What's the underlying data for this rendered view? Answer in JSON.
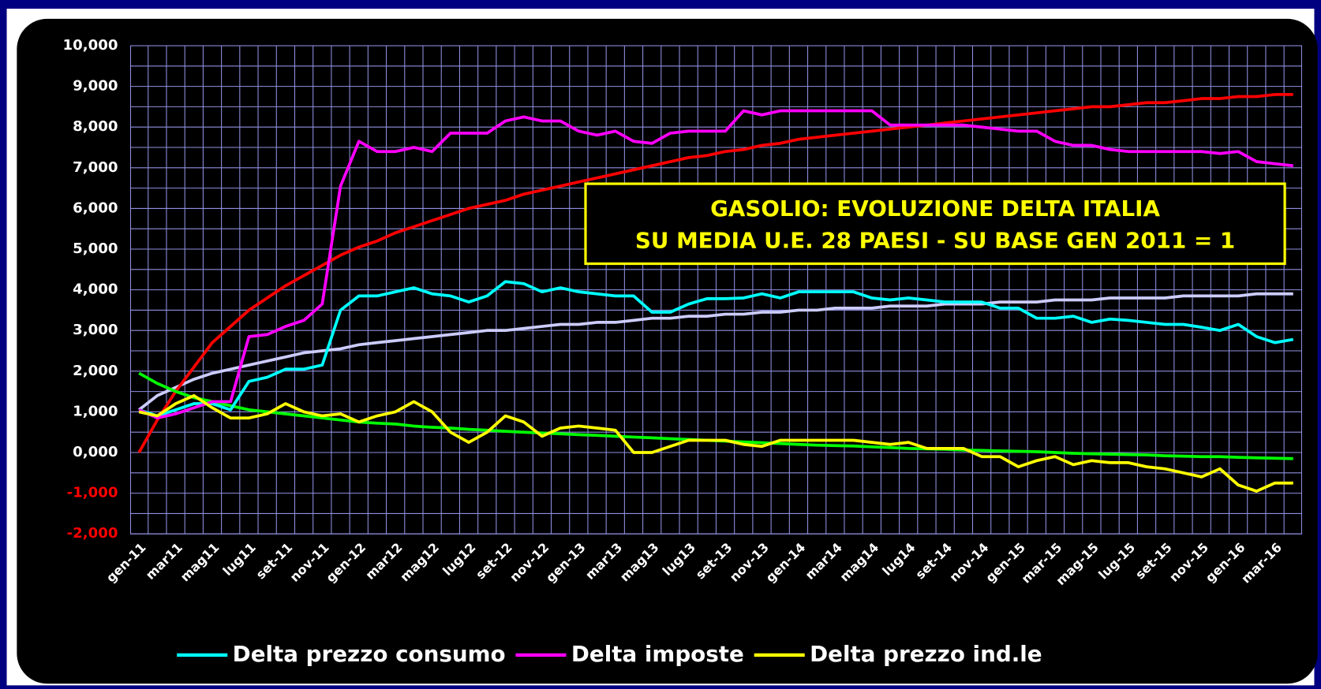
{
  "chart_data": {
    "type": "line",
    "title": "GASOLIO: EVOLUZIONE DELTA ITALIA",
    "subtitle": "SU MEDIA U.E. 28 PAESI - SU BASE GEN 2011 = 1",
    "categories": [
      "gen-11",
      null,
      "mar11",
      null,
      "mag11",
      null,
      "lug11",
      null,
      "set-11",
      null,
      "nov-11",
      null,
      "gen-12",
      null,
      "mar12",
      null,
      "mag12",
      null,
      "lug12",
      null,
      "set-12",
      null,
      "nov-12",
      null,
      "gen-13",
      null,
      "mar13",
      null,
      "mag13",
      null,
      "lug13",
      null,
      "set-13",
      null,
      "nov-13",
      null,
      "gen-14",
      null,
      "mar14",
      null,
      "mag14",
      null,
      "lug14",
      null,
      "set-14",
      null,
      "nov-14",
      null,
      "gen-15",
      null,
      "mar-15",
      null,
      "mag-15",
      null,
      "lug-15",
      null,
      "set-15",
      null,
      "nov-15",
      null,
      "gen-16",
      null,
      "mar-16",
      null
    ],
    "ylim": [
      -2,
      10
    ],
    "yticks": [
      {
        "value": -2,
        "label": "-2,000"
      },
      {
        "value": -1,
        "label": "-1,000"
      },
      {
        "value": 0,
        "label": "0,000"
      },
      {
        "value": 1,
        "label": "1,000"
      },
      {
        "value": 2,
        "label": "2,000"
      },
      {
        "value": 3,
        "label": "3,000"
      },
      {
        "value": 4,
        "label": "4,000"
      },
      {
        "value": 5,
        "label": "5,000"
      },
      {
        "value": 6,
        "label": "6,000"
      },
      {
        "value": 7,
        "label": "7,000"
      },
      {
        "value": 8,
        "label": "8,000"
      },
      {
        "value": 9,
        "label": "9,000"
      },
      {
        "value": 10,
        "label": "10,000"
      }
    ],
    "grid": true,
    "legend": "bottom",
    "series": [
      {
        "color": "#ccccff",
        "values": [
          1.05,
          1.4,
          1.6,
          1.8,
          1.95,
          2.05,
          2.15,
          2.25,
          2.35,
          2.45,
          2.5,
          2.55,
          2.65,
          2.7,
          2.75,
          2.8,
          2.85,
          2.9,
          2.95,
          3.0,
          3.0,
          3.05,
          3.1,
          3.15,
          3.15,
          3.2,
          3.2,
          3.25,
          3.3,
          3.3,
          3.35,
          3.35,
          3.4,
          3.4,
          3.45,
          3.45,
          3.5,
          3.5,
          3.55,
          3.55,
          3.55,
          3.6,
          3.6,
          3.6,
          3.65,
          3.65,
          3.65,
          3.7,
          3.7,
          3.7,
          3.75,
          3.75,
          3.75,
          3.8,
          3.8,
          3.8,
          3.8,
          3.85,
          3.85,
          3.85,
          3.85,
          3.9,
          3.9,
          3.9
        ]
      },
      {
        "color": "#ff0000",
        "values": [
          0,
          0.8,
          1.5,
          2.1,
          2.7,
          3.1,
          3.5,
          3.8,
          4.1,
          4.35,
          4.6,
          4.85,
          5.05,
          5.2,
          5.4,
          5.55,
          5.7,
          5.85,
          6.0,
          6.1,
          6.2,
          6.35,
          6.45,
          6.55,
          6.65,
          6.75,
          6.85,
          6.95,
          7.05,
          7.15,
          7.25,
          7.3,
          7.4,
          7.45,
          7.55,
          7.6,
          7.7,
          7.75,
          7.8,
          7.85,
          7.9,
          7.95,
          8.0,
          8.05,
          8.1,
          8.15,
          8.2,
          8.25,
          8.3,
          8.35,
          8.4,
          8.45,
          8.5,
          8.5,
          8.55,
          8.6,
          8.6,
          8.65,
          8.7,
          8.7,
          8.75,
          8.75,
          8.8,
          8.8
        ]
      },
      {
        "color": "#00ff00",
        "values": [
          1.95,
          1.7,
          1.5,
          1.35,
          1.25,
          1.15,
          1.05,
          1.0,
          0.95,
          0.9,
          0.85,
          0.8,
          0.75,
          0.72,
          0.7,
          0.65,
          0.62,
          0.6,
          0.57,
          0.55,
          0.52,
          0.5,
          0.48,
          0.46,
          0.44,
          0.42,
          0.4,
          0.38,
          0.36,
          0.34,
          0.32,
          0.3,
          0.28,
          0.26,
          0.24,
          0.22,
          0.2,
          0.18,
          0.17,
          0.16,
          0.14,
          0.12,
          0.1,
          0.09,
          0.08,
          0.06,
          0.05,
          0.04,
          0.03,
          0.02,
          0,
          -0.02,
          -0.03,
          -0.04,
          -0.05,
          -0.06,
          -0.08,
          -0.09,
          -0.1,
          -0.1,
          -0.12,
          -0.13,
          -0.14,
          -0.15
        ]
      },
      {
        "name": "Delta prezzo consumo",
        "color": "#00ffff",
        "values": [
          1.05,
          0.9,
          1.05,
          1.2,
          1.2,
          1.05,
          1.75,
          1.85,
          2.05,
          2.05,
          2.15,
          3.5,
          3.85,
          3.85,
          3.95,
          4.05,
          3.9,
          3.85,
          3.7,
          3.85,
          4.2,
          4.15,
          3.95,
          4.05,
          3.95,
          3.9,
          3.85,
          3.85,
          3.45,
          3.45,
          3.65,
          3.78,
          3.78,
          3.8,
          3.9,
          3.8,
          3.95,
          3.95,
          3.95,
          3.95,
          3.8,
          3.75,
          3.8,
          3.75,
          3.7,
          3.7,
          3.7,
          3.55,
          3.55,
          3.3,
          3.3,
          3.35,
          3.2,
          3.28,
          3.25,
          3.2,
          3.15,
          3.15,
          3.08,
          3.0,
          3.15,
          2.85,
          2.7,
          2.78
        ]
      },
      {
        "name": "Delta imposte",
        "color": "#ff00ff",
        "values": [
          1.05,
          0.85,
          0.95,
          1.1,
          1.25,
          1.25,
          2.85,
          2.9,
          3.1,
          3.25,
          3.65,
          6.55,
          7.65,
          7.4,
          7.4,
          7.5,
          7.4,
          7.85,
          7.85,
          7.85,
          8.15,
          8.25,
          8.15,
          8.15,
          7.9,
          7.8,
          7.9,
          7.65,
          7.6,
          7.85,
          7.9,
          7.9,
          7.9,
          8.4,
          8.3,
          8.4,
          8.4,
          8.4,
          8.4,
          8.4,
          8.4,
          8.05,
          8.05,
          8.05,
          8.05,
          8.05,
          8.0,
          7.95,
          7.9,
          7.9,
          7.65,
          7.55,
          7.55,
          7.45,
          7.4,
          7.4,
          7.4,
          7.4,
          7.4,
          7.35,
          7.4,
          7.15,
          7.1,
          7.05
        ]
      },
      {
        "name": "Delta prezzo ind.le",
        "color": "#ffff00",
        "values": [
          1.0,
          0.9,
          1.2,
          1.4,
          1.1,
          0.85,
          0.85,
          0.95,
          1.2,
          1.0,
          0.9,
          0.95,
          0.75,
          0.9,
          1.0,
          1.25,
          1.0,
          0.5,
          0.25,
          0.5,
          0.9,
          0.75,
          0.4,
          0.6,
          0.65,
          0.6,
          0.55,
          0.0,
          0.0,
          0.15,
          0.3,
          0.3,
          0.3,
          0.2,
          0.15,
          0.3,
          0.3,
          0.3,
          0.3,
          0.3,
          0.25,
          0.2,
          0.25,
          0.1,
          0.1,
          0.1,
          -0.1,
          -0.1,
          -0.35,
          -0.2,
          -0.1,
          -0.3,
          -0.2,
          -0.25,
          -0.25,
          -0.35,
          -0.4,
          -0.5,
          -0.6,
          -0.4,
          -0.8,
          -0.95,
          -0.75,
          -0.75
        ]
      }
    ]
  }
}
